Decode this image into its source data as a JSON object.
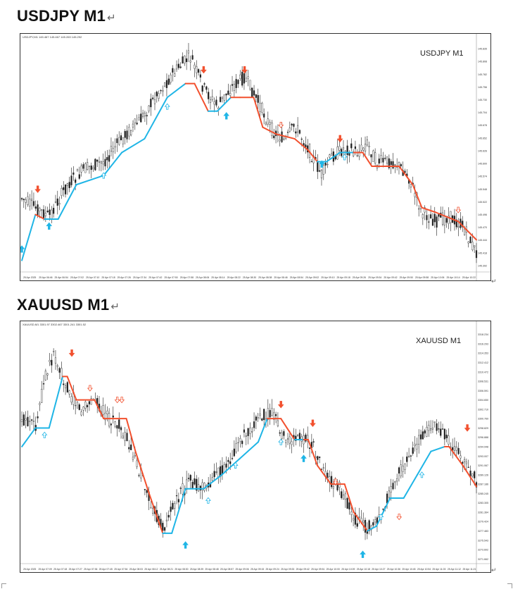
{
  "charts": [
    {
      "heading": "USDJPY M1",
      "overlay_label": "USDJPY M1",
      "header_text": "USDJPY,M1  145.467 145.467 145.263 145.292",
      "price_labels": [
        "145.835",
        "145.808",
        "145.782",
        "145.756",
        "145.730",
        "145.704",
        "145.678",
        "145.652",
        "145.626",
        "145.600",
        "145.574",
        "145.548",
        "145.522",
        "145.496",
        "145.470",
        "145.444",
        "145.418",
        "145.392"
      ],
      "time_labels": [
        "25 Apr 2025",
        "25 Apr 06:46",
        "25 Apr 06:54",
        "25 Apr 07:02",
        "25 Apr 07:10",
        "25 Apr 07:18",
        "25 Apr 07:26",
        "25 Apr 07:34",
        "25 Apr 07:42",
        "25 Apr 07:50",
        "25 Apr 07:58",
        "25 Apr 08:06",
        "25 Apr 08:14",
        "25 Apr 08:22",
        "25 Apr 08:30",
        "25 Apr 08:38",
        "25 Apr 08:46",
        "25 Apr 08:54",
        "25 Apr 09:02",
        "25 Apr 09:10",
        "25 Apr 09:18",
        "25 Apr 09:26",
        "25 Apr 09:34",
        "25 Apr 09:42",
        "25 Apr 09:50",
        "25 Apr 09:58",
        "25 Apr 10:06",
        "25 Apr 10:14",
        "25 Apr 10:22"
      ],
      "colors": {
        "up_line": "#1fb5e6",
        "down_line": "#f2502e",
        "candle": "#222222"
      }
    },
    {
      "heading": "XAUUSD M1",
      "overlay_label": "XAUUSD M1",
      "header_text": "XAUUSD,M1  3301.97 3302.467 3301.241 3301.52",
      "price_labels": [
        "3318.234",
        "3316.293",
        "3314.353",
        "3312.412",
        "3310.472",
        "3308.531",
        "3306.591",
        "3304.650",
        "3302.710",
        "3300.769",
        "3298.829",
        "3296.888",
        "3294.948",
        "3293.007",
        "3291.067",
        "3289.126",
        "3287.186",
        "3285.245",
        "3283.305",
        "3281.364",
        "3279.424",
        "3277.483",
        "3275.543",
        "3273.602",
        "3271.662"
      ],
      "time_labels": [
        "25 Apr 2025",
        "25 Apr 07:09",
        "25 Apr 07:18",
        "25 Apr 07:27",
        "25 Apr 07:36",
        "25 Apr 07:45",
        "25 Apr 07:54",
        "25 Apr 08:03",
        "25 Apr 08:12",
        "25 Apr 08:21",
        "25 Apr 08:30",
        "25 Apr 08:39",
        "25 Apr 08:48",
        "25 Apr 08:57",
        "25 Apr 09:06",
        "25 Apr 09:15",
        "25 Apr 09:24",
        "25 Apr 09:33",
        "25 Apr 09:42",
        "25 Apr 09:51",
        "25 Apr 10:00",
        "25 Apr 10:09",
        "25 Apr 10:18",
        "25 Apr 10:27",
        "25 Apr 10:36",
        "25 Apr 10:45",
        "25 Apr 10:54",
        "25 Apr 11:03",
        "25 Apr 11:12",
        "25 Apr 11:21"
      ],
      "colors": {
        "up_line": "#1fb5e6",
        "down_line": "#f2502e",
        "candle": "#222222"
      }
    }
  ],
  "paragraph_mark": "↵"
}
